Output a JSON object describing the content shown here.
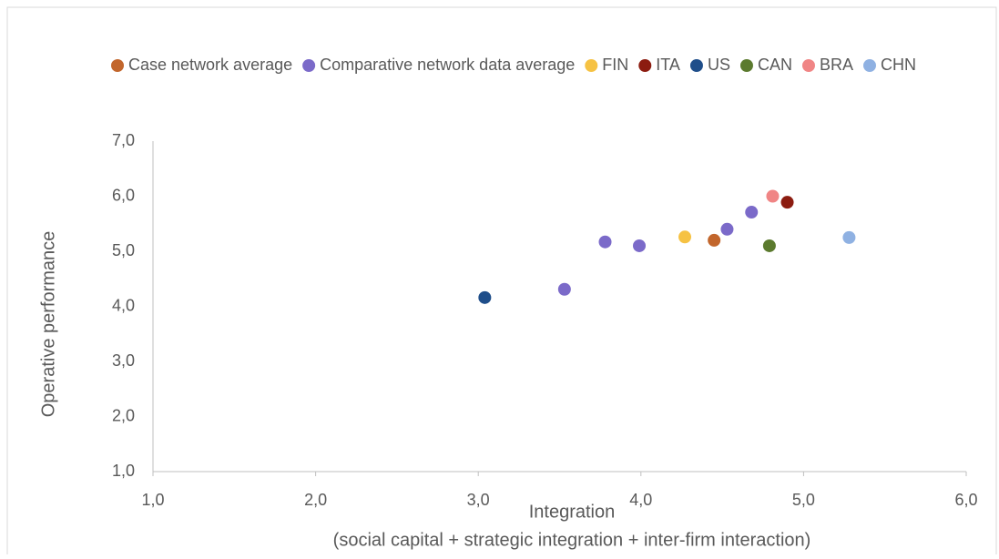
{
  "chart_data": {
    "type": "scatter",
    "xlabel": [
      "Integration",
      "(social capital + strategic integration + inter-firm interaction)"
    ],
    "ylabel": "Operative performance",
    "xlim": [
      1,
      6
    ],
    "xticks": [
      {
        "value": 1,
        "label": "1,0"
      },
      {
        "value": 2,
        "label": "2,0"
      },
      {
        "value": 3,
        "label": "3,0"
      },
      {
        "value": 4,
        "label": "4,0"
      },
      {
        "value": 5,
        "label": "5,0"
      },
      {
        "value": 6,
        "label": "6,0"
      }
    ],
    "ylim": [
      1,
      7
    ],
    "yticks": [
      {
        "value": 1,
        "label": "1,0"
      },
      {
        "value": 2,
        "label": "2,0"
      },
      {
        "value": 3,
        "label": "3,0"
      },
      {
        "value": 4,
        "label": "4,0"
      },
      {
        "value": 5,
        "label": "5,0"
      },
      {
        "value": 6,
        "label": "6,0"
      },
      {
        "value": 7,
        "label": "7,0"
      }
    ],
    "grid": false,
    "legend": "top",
    "series": [
      {
        "name": "Case network average",
        "color": "#c2662c",
        "x": [
          4.45
        ],
        "values": [
          5.2
        ]
      },
      {
        "name": "Comparative network data average",
        "color": "#7b6ac9",
        "x": [
          3.78,
          3.99,
          3.53,
          4.53,
          4.68
        ],
        "values": [
          5.17,
          5.1,
          4.31,
          5.4,
          5.71
        ]
      },
      {
        "name": "FIN",
        "color": "#f6c243",
        "x": [
          4.27
        ],
        "values": [
          5.26
        ]
      },
      {
        "name": "ITA",
        "color": "#8c1c10",
        "x": [
          4.9
        ],
        "values": [
          5.89
        ]
      },
      {
        "name": "US",
        "color": "#1f4e8a",
        "x": [
          3.04
        ],
        "values": [
          4.16
        ]
      },
      {
        "name": "CAN",
        "color": "#5b7a2e",
        "x": [
          4.79
        ],
        "values": [
          5.1
        ]
      },
      {
        "name": "BRA",
        "color": "#f08585",
        "x": [
          4.81
        ],
        "values": [
          6.0
        ]
      },
      {
        "name": "CHN",
        "color": "#8fb1e2",
        "x": [
          5.28
        ],
        "values": [
          5.25
        ]
      }
    ]
  }
}
